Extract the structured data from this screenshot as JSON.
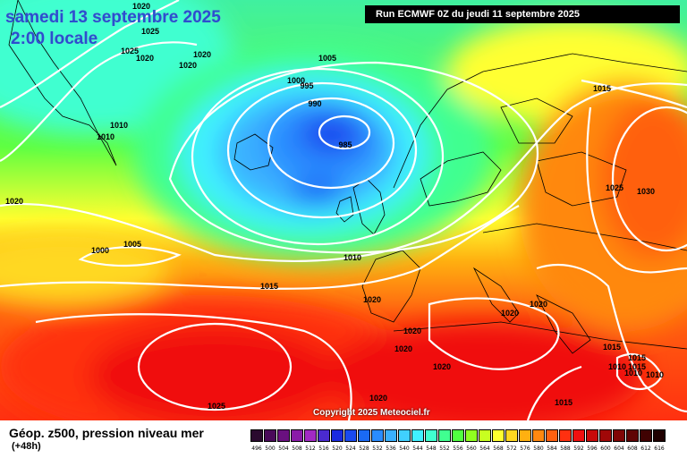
{
  "header": {
    "date_line": "samedi 13 septembre 2025",
    "time_line": "2:00 locale",
    "run_info": "Run ECMWF 0Z du jeudi 11 septembre 2025"
  },
  "map": {
    "pressure_labels": [
      {
        "text": "1020"
      },
      {
        "text": "1025"
      },
      {
        "text": "1025"
      },
      {
        "text": "1020"
      },
      {
        "text": "1020"
      },
      {
        "text": "1020"
      },
      {
        "text": "1005"
      },
      {
        "text": "1000"
      },
      {
        "text": "995"
      },
      {
        "text": "990"
      },
      {
        "text": "985"
      },
      {
        "text": "1010"
      },
      {
        "text": "1010"
      },
      {
        "text": "1020"
      },
      {
        "text": "1005"
      },
      {
        "text": "1000"
      },
      {
        "text": "1010"
      },
      {
        "text": "1015"
      },
      {
        "text": "1015"
      },
      {
        "text": "1025"
      },
      {
        "text": "1030"
      },
      {
        "text": "1020"
      },
      {
        "text": "1020"
      },
      {
        "text": "1020"
      },
      {
        "text": "1020"
      },
      {
        "text": "1020"
      },
      {
        "text": "1020"
      },
      {
        "text": "1020"
      },
      {
        "text": "1025"
      },
      {
        "text": "1015"
      },
      {
        "text": "1015"
      },
      {
        "text": "1010"
      },
      {
        "text": "1015"
      },
      {
        "text": "1010"
      },
      {
        "text": "1010"
      },
      {
        "text": "1015"
      }
    ],
    "copyright": "Copyright 2025 Meteociel.fr"
  },
  "legend": {
    "title": "Géop. z500, pression niveau mer",
    "subtitle": "(+48h)",
    "scale": [
      {
        "label": "496",
        "color": "#2a0a2e"
      },
      {
        "label": "500",
        "color": "#4a0a5a"
      },
      {
        "label": "504",
        "color": "#6a1080"
      },
      {
        "label": "508",
        "color": "#8a1aa8"
      },
      {
        "label": "512",
        "color": "#a22ac4"
      },
      {
        "label": "516",
        "color": "#4a2ad0"
      },
      {
        "label": "520",
        "color": "#1a2ae0"
      },
      {
        "label": "524",
        "color": "#1a4aef"
      },
      {
        "label": "528",
        "color": "#1a6af5"
      },
      {
        "label": "532",
        "color": "#2a8cff"
      },
      {
        "label": "536",
        "color": "#3ab0ff"
      },
      {
        "label": "540",
        "color": "#40d0ff"
      },
      {
        "label": "544",
        "color": "#40f0ff"
      },
      {
        "label": "548",
        "color": "#40ffd0"
      },
      {
        "label": "552",
        "color": "#40ff90"
      },
      {
        "label": "556",
        "color": "#50ff40"
      },
      {
        "label": "560",
        "color": "#90ff20"
      },
      {
        "label": "564",
        "color": "#c8ff20"
      },
      {
        "label": "568",
        "color": "#ffff30"
      },
      {
        "label": "572",
        "color": "#ffd820"
      },
      {
        "label": "576",
        "color": "#ffb010"
      },
      {
        "label": "580",
        "color": "#ff8810"
      },
      {
        "label": "584",
        "color": "#ff6010"
      },
      {
        "label": "588",
        "color": "#ff3010"
      },
      {
        "label": "592",
        "color": "#f01010"
      },
      {
        "label": "596",
        "color": "#c80a0a"
      },
      {
        "label": "600",
        "color": "#a00808"
      },
      {
        "label": "604",
        "color": "#800606"
      },
      {
        "label": "608",
        "color": "#600404"
      },
      {
        "label": "612",
        "color": "#400202"
      },
      {
        "label": "616",
        "color": "#200000"
      }
    ]
  }
}
